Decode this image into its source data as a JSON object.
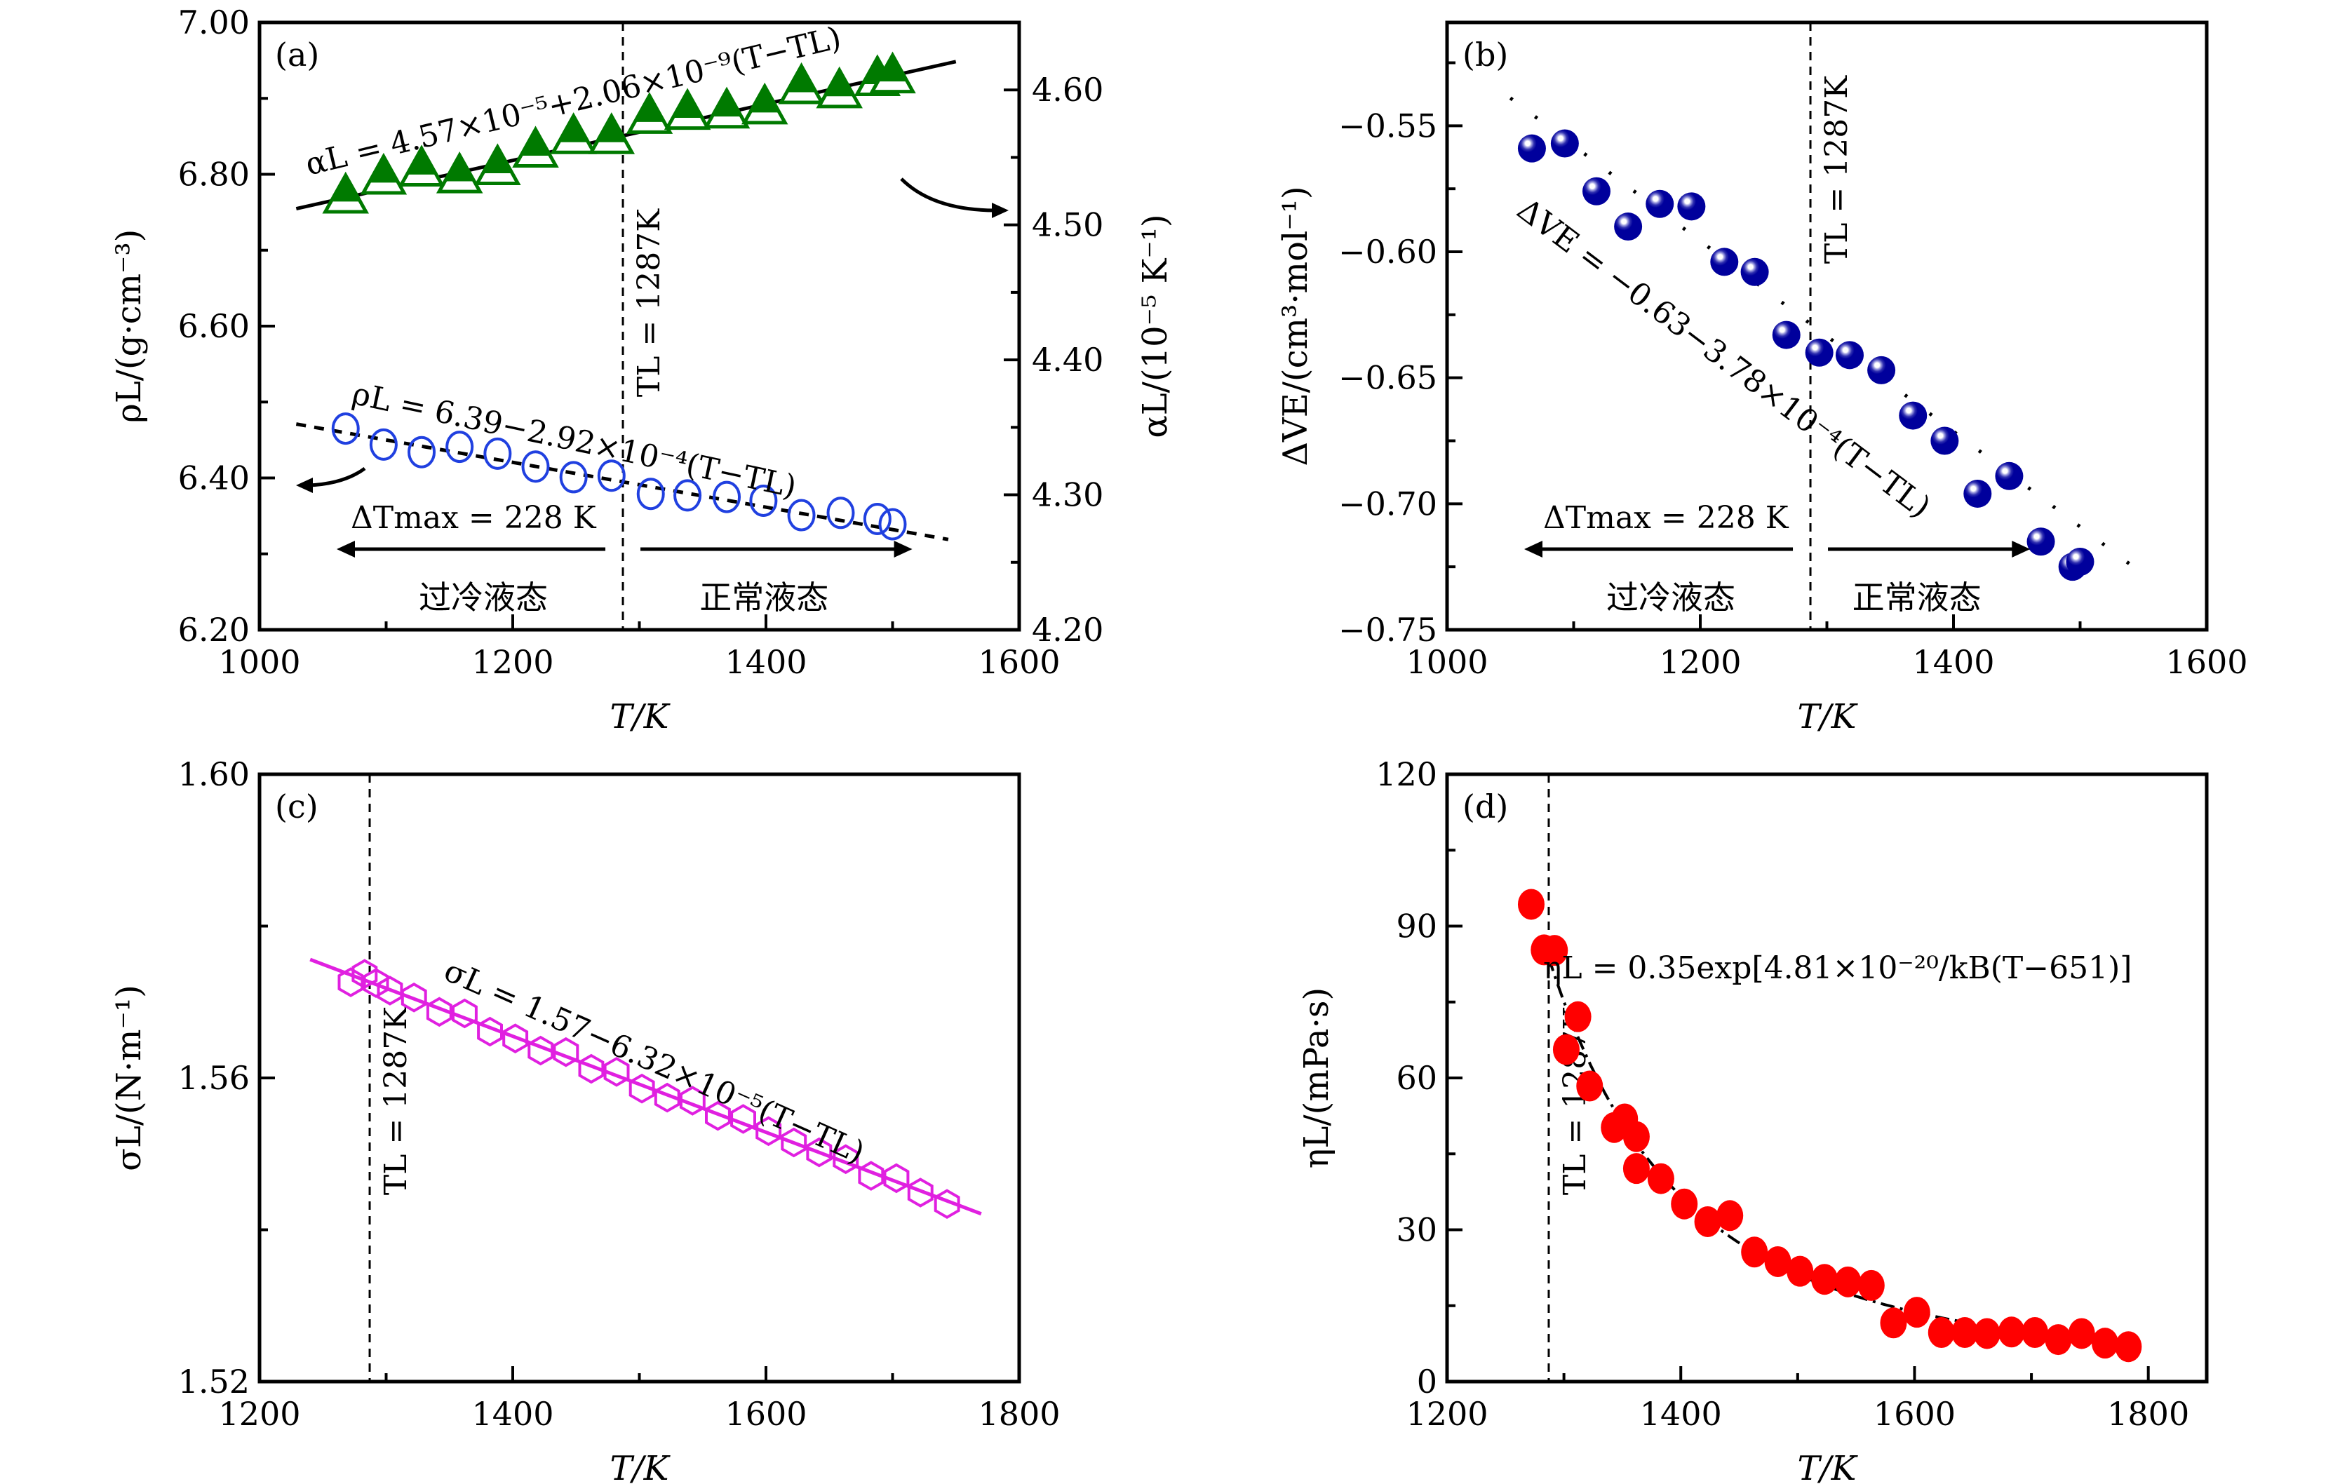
{
  "chart_data": [
    {
      "id": "a",
      "type": "scatter",
      "panel_label": "(a)",
      "xlabel": "T/K",
      "ylabel": "ρL/(g·cm⁻³)",
      "y2label": "αL/(10⁻⁵ K⁻¹)",
      "xlim": [
        1000,
        1600
      ],
      "ylim": [
        6.2,
        7.0
      ],
      "y2lim": [
        4.2,
        4.65
      ],
      "xticks": [
        1000,
        1200,
        1400,
        1600
      ],
      "xtick_labels": [
        "1000",
        "1200",
        "1400",
        "1600"
      ],
      "yticks": [
        6.2,
        6.4,
        6.6,
        6.8,
        7.0
      ],
      "ytick_labels": [
        "6.20",
        "6.40",
        "6.60",
        "6.80",
        "7.00"
      ],
      "y2ticks": [
        4.2,
        4.3,
        4.4,
        4.5,
        4.6
      ],
      "y2tick_labels": [
        "4.20",
        "4.30",
        "4.40",
        "4.50",
        "4.60"
      ],
      "grid": false,
      "vline": {
        "x": 1287,
        "label": "TL = 1287K"
      },
      "series": [
        {
          "name": "αL",
          "axis": "right",
          "marker": "half-filled-triangle",
          "color": "#007a00",
          "x": [
            1068,
            1098,
            1128,
            1158,
            1188,
            1218,
            1248,
            1278,
            1308,
            1338,
            1369,
            1399,
            1428,
            1458,
            1488,
            1500
          ],
          "y": [
            4.52,
            4.534,
            4.54,
            4.535,
            4.541,
            4.554,
            4.564,
            4.564,
            4.579,
            4.582,
            4.583,
            4.586,
            4.601,
            4.598,
            4.607,
            4.609
          ],
          "fit": {
            "style": "solid",
            "x": [
              1029,
              1550
            ],
            "y": [
              4.512,
              4.621
            ],
            "equation": "αL = 4.57×10⁻⁵+2.06×10⁻⁹(T−TL)"
          }
        },
        {
          "name": "ρL",
          "axis": "left",
          "marker": "open-circle",
          "color": "#2040e0",
          "x": [
            1068,
            1098,
            1128,
            1158,
            1188,
            1218,
            1248,
            1278,
            1309,
            1338,
            1369,
            1398,
            1428,
            1459,
            1488,
            1500
          ],
          "y": [
            6.465,
            6.444,
            6.434,
            6.441,
            6.432,
            6.415,
            6.401,
            6.403,
            6.379,
            6.377,
            6.375,
            6.37,
            6.351,
            6.354,
            6.346,
            6.339
          ],
          "fit": {
            "style": "dashed",
            "x": [
              1029,
              1544
            ],
            "y": [
              6.471,
              6.319
            ],
            "equation": "ρL = 6.39−2.92×10⁻⁴(T−TL)"
          }
        }
      ],
      "annotations": {
        "delta_t": "ΔTmax = 228 K",
        "supercooled": "过冷液态",
        "normal": "正常液态"
      }
    },
    {
      "id": "b",
      "type": "scatter",
      "panel_label": "(b)",
      "xlabel": "T/K",
      "ylabel": "ΔVE/(cm³·mol⁻¹)",
      "xlim": [
        1000,
        1600
      ],
      "ylim": [
        -0.75,
        -0.509
      ],
      "xticks": [
        1000,
        1200,
        1400,
        1600
      ],
      "xtick_labels": [
        "1000",
        "1200",
        "1400",
        "1600"
      ],
      "yticks": [
        -0.75,
        -0.7,
        -0.65,
        -0.6,
        -0.55
      ],
      "ytick_labels": [
        "−0.75",
        "−0.70",
        "−0.65",
        "−0.60",
        "−0.55"
      ],
      "grid": false,
      "vline": {
        "x": 1287,
        "label": "TL = 1287K"
      },
      "series": [
        {
          "name": "ΔVE",
          "marker": "sphere",
          "color": "#00009c",
          "x": [
            1067,
            1093,
            1118,
            1143,
            1168,
            1193,
            1219,
            1243,
            1268,
            1294,
            1318,
            1343,
            1368,
            1393,
            1419,
            1444,
            1469,
            1494,
            1500
          ],
          "y": [
            -0.559,
            -0.557,
            -0.576,
            -0.59,
            -0.581,
            -0.582,
            -0.604,
            -0.608,
            -0.633,
            -0.64,
            -0.641,
            -0.647,
            -0.665,
            -0.675,
            -0.696,
            -0.689,
            -0.715,
            -0.725,
            -0.723
          ],
          "fit": {
            "style": "dotted",
            "x": [
              1050,
              1550
            ],
            "y": [
              -0.539,
              -0.728
            ],
            "equation": "ΔVE = −0.63−3.78×10⁻⁴(T−TL)"
          }
        }
      ],
      "annotations": {
        "delta_t": "ΔTmax = 228 K",
        "supercooled": "过冷液态",
        "normal": "正常液态"
      }
    },
    {
      "id": "c",
      "type": "scatter",
      "panel_label": "(c)",
      "xlabel": "T/K",
      "ylabel": "σL/(N·m⁻¹)",
      "xlim": [
        1200,
        1800
      ],
      "ylim": [
        1.52,
        1.6
      ],
      "xticks": [
        1200,
        1400,
        1600,
        1800
      ],
      "xtick_labels": [
        "1200",
        "1400",
        "1600",
        "1800"
      ],
      "yticks": [
        1.52,
        1.56,
        1.6
      ],
      "ytick_labels": [
        "1.52",
        "1.56",
        "1.60"
      ],
      "grid": false,
      "vline": {
        "x": 1287,
        "label": "TL = 1287K"
      },
      "series": [
        {
          "name": "σL",
          "marker": "open-hexagon",
          "color": "#e020e0",
          "x": [
            1272,
            1283,
            1292,
            1303,
            1322,
            1342,
            1362,
            1382,
            1402,
            1422,
            1442,
            1462,
            1482,
            1502,
            1522,
            1542,
            1562,
            1582,
            1602,
            1622,
            1642,
            1663,
            1683,
            1703,
            1722,
            1743
          ],
          "y": [
            1.5726,
            1.5737,
            1.5725,
            1.5715,
            1.5706,
            1.5687,
            1.5685,
            1.5661,
            1.5652,
            1.5636,
            1.5634,
            1.5612,
            1.5608,
            1.5586,
            1.5574,
            1.557,
            1.555,
            1.5546,
            1.553,
            1.5515,
            1.5502,
            1.5493,
            1.5471,
            1.5468,
            1.5449,
            1.5434
          ],
          "fit": {
            "style": "solid",
            "x": [
              1240,
              1770
            ],
            "y": [
              1.5756,
              1.5421
            ],
            "equation": "σL = 1.57−6.32×10⁻⁵(T−TL)"
          }
        }
      ]
    },
    {
      "id": "d",
      "type": "scatter",
      "panel_label": "(d)",
      "xlabel": "T/K",
      "ylabel": "ηL/(mPa·s)",
      "xlim": [
        1200,
        1850
      ],
      "ylim": [
        0,
        120
      ],
      "xticks": [
        1200,
        1400,
        1600,
        1800
      ],
      "xtick_labels": [
        "1200",
        "1400",
        "1600",
        "1800"
      ],
      "yticks": [
        0,
        30,
        60,
        90,
        120
      ],
      "ytick_labels": [
        "0",
        "30",
        "60",
        "90",
        "120"
      ],
      "grid": false,
      "vline": {
        "x": 1287,
        "label": "TL = 1287K"
      },
      "series": [
        {
          "name": "ηL",
          "marker": "filled-circle",
          "color": "#ff0000",
          "x": [
            1272,
            1283,
            1292,
            1312,
            1302,
            1322,
            1343,
            1352,
            1362,
            1362,
            1383,
            1403,
            1423,
            1442,
            1463,
            1483,
            1502,
            1523,
            1543,
            1563,
            1582,
            1602,
            1623,
            1643,
            1662,
            1683,
            1703,
            1723,
            1743,
            1763,
            1783
          ],
          "y": [
            94.3,
            85.3,
            85.2,
            72.1,
            65.6,
            58.4,
            50.2,
            51.9,
            48.4,
            42.1,
            40.1,
            35.1,
            31.6,
            32.8,
            25.6,
            23.7,
            21.8,
            20.2,
            19.7,
            19.0,
            11.6,
            13.7,
            9.7,
            9.7,
            9.5,
            9.8,
            9.7,
            8.3,
            9.5,
            7.6,
            6.9
          ],
          "fit": {
            "style": "dash-dot",
            "model": "0.35*exp(3484/(T-651))",
            "x_range": [
              1287,
              1650
            ],
            "equation": "ηL = 0.35exp[4.81×10⁻²⁰/kB(T−651)]"
          }
        }
      ]
    }
  ]
}
